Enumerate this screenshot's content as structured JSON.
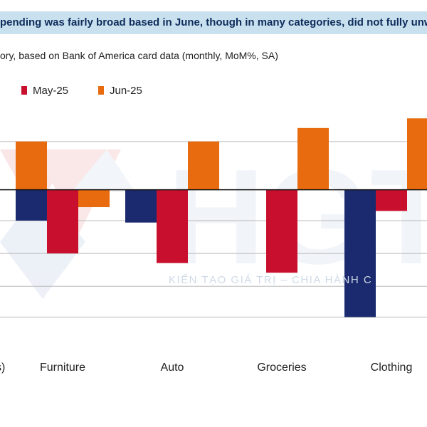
{
  "header": {
    "title": "pending was fairly broad based in June, though in many categories, did not fully unwin",
    "subtitle": "ory, based on Bank of America card data (monthly, MoM%, SA)"
  },
  "watermark": {
    "letters": "HGT",
    "tagline": "KIẾN TẠO GIÁ TRỊ – CHIA      HÀNH C"
  },
  "colors": {
    "title_bg": "#c9e0ef",
    "title_text": "#0d2c5a",
    "navy": "#1b2a6e",
    "red": "#c8102e",
    "orange": "#e86b10"
  },
  "chart_data": {
    "type": "bar",
    "categories": [
      "s)",
      "Furniture",
      "Auto",
      "Groceries",
      "Clothing"
    ],
    "series": [
      {
        "name": "",
        "color": "#1b2a6e",
        "values": [
          null,
          -1.6,
          -1.7,
          null,
          -6.6
        ]
      },
      {
        "name": "May-25",
        "color": "#c8102e",
        "values": [
          null,
          -3.3,
          -3.8,
          -4.3,
          -1.1
        ]
      },
      {
        "name": "Jun-25",
        "color": "#e86b10",
        "values": [
          2.5,
          -0.9,
          2.5,
          3.2,
          3.7
        ]
      }
    ],
    "legend": [
      "May-25",
      "Jun-25"
    ],
    "ylim": [
      -7.5,
      4.3
    ],
    "gridlines": [
      2.5,
      0,
      -1.6,
      -3.3,
      -5.0,
      -6.6
    ],
    "grid": true,
    "legend_position": "top-left"
  }
}
